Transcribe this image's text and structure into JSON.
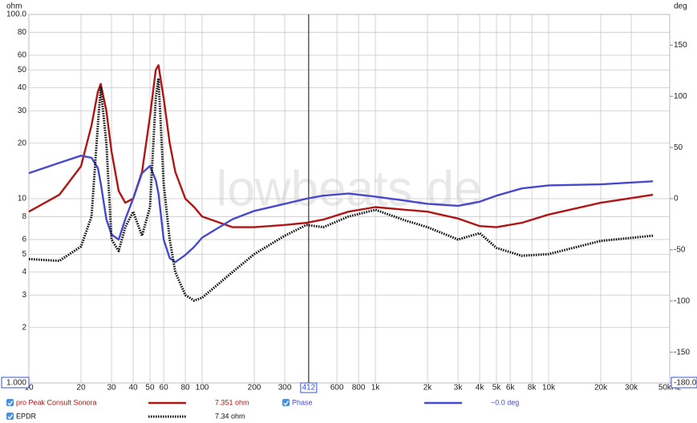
{
  "chart_data": {
    "type": "line",
    "y_label": "ohm",
    "y2_label": "deg",
    "annotation": "lowbeats.de",
    "x_scale": "log",
    "y_scale": "log",
    "grid": true,
    "xlim": [
      10,
      50000
    ],
    "ylim": [
      1,
      100
    ],
    "y2lim": [
      -180,
      180
    ],
    "xticks": [
      10,
      20,
      30,
      40,
      50,
      60,
      80,
      100,
      200,
      300,
      600,
      800,
      {
        "value": 1000,
        "label": "1k"
      },
      {
        "value": 2000,
        "label": "2k"
      },
      {
        "value": 3000,
        "label": "3k"
      },
      {
        "value": 4000,
        "label": "4k"
      },
      {
        "value": 5000,
        "label": "5k"
      },
      {
        "value": 6000,
        "label": "6k"
      },
      {
        "value": 8000,
        "label": "8k"
      },
      {
        "value": 10000,
        "label": "10k"
      },
      {
        "value": 20000,
        "label": "20k"
      },
      {
        "value": 30000,
        "label": "30k"
      },
      {
        "value": 50000,
        "label": "50kHz"
      }
    ],
    "yticks": [
      {
        "value": 1,
        "label": "1.000"
      },
      2,
      3,
      4,
      5,
      6,
      8,
      10,
      20,
      30,
      40,
      50,
      60,
      80,
      {
        "value": 100,
        "label": "100.0"
      }
    ],
    "y2ticks": [
      {
        "value": -180,
        "label": "-180.0"
      },
      -150,
      -100,
      -50,
      0,
      50,
      100,
      150
    ],
    "cursor": 412,
    "x": [
      10,
      15,
      20,
      23,
      25,
      26,
      28,
      30,
      33,
      36,
      40,
      45,
      50,
      54,
      56,
      60,
      65,
      70,
      80,
      90,
      100,
      150,
      200,
      300,
      400,
      500,
      700,
      1000,
      1500,
      2000,
      3000,
      4000,
      5000,
      7000,
      10000,
      20000,
      40000
    ],
    "series": [
      {
        "name": "pro Peak Consult Sonora",
        "color": "#b01515",
        "axis": "y",
        "style": "solid",
        "readout": "7.351 ohm",
        "values": [
          8.5,
          10.5,
          15,
          25,
          38,
          42,
          30,
          18,
          11,
          9.5,
          10,
          14,
          28,
          50,
          53,
          35,
          20,
          14,
          10,
          9,
          8,
          7,
          7,
          7.2,
          7.4,
          7.7,
          8.5,
          9,
          8.7,
          8.5,
          7.8,
          7.1,
          7,
          7.4,
          8.2,
          9.5,
          10.5
        ]
      },
      {
        "name": "Phase",
        "color": "#4848cc",
        "axis": "y2",
        "style": "solid",
        "readout": "−0.0 deg",
        "values": [
          25,
          35,
          42,
          40,
          30,
          15,
          -20,
          -35,
          -40,
          -20,
          0,
          25,
          32,
          18,
          5,
          -40,
          -58,
          -62,
          -55,
          -47,
          -38,
          -20,
          -12,
          -5,
          0,
          3,
          5,
          2,
          -2,
          -5,
          -7,
          -3,
          3,
          10,
          13,
          14,
          17
        ]
      },
      {
        "name": "EPDR",
        "color": "#111111",
        "axis": "y",
        "style": "dotted",
        "readout": "7.34 ohm",
        "values": [
          4.7,
          4.6,
          5.5,
          8,
          25,
          40,
          20,
          6,
          5.2,
          7,
          8.5,
          6.3,
          9,
          35,
          45,
          12,
          6,
          4,
          3,
          2.8,
          2.9,
          4,
          5,
          6.3,
          7.2,
          7,
          8,
          8.7,
          7.6,
          7,
          6,
          6.5,
          5.4,
          4.9,
          5,
          5.9,
          6.3
        ]
      }
    ]
  }
}
